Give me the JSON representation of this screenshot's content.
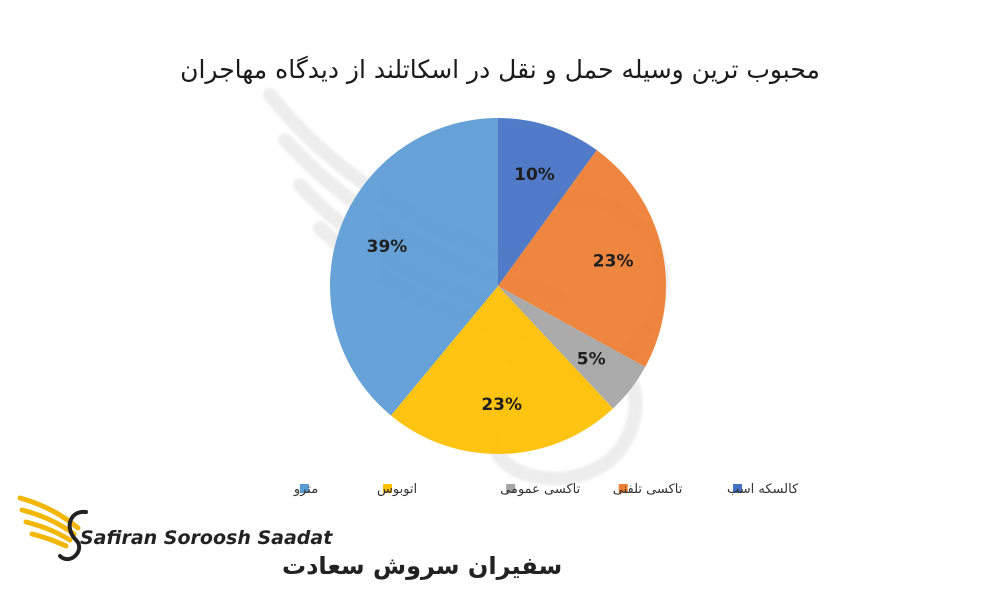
{
  "chart_data": {
    "type": "pie",
    "title": "محبوب ترین وسیله حمل و نقل در اسکاتلند از دیدگاه مهاجران",
    "slices": [
      {
        "name": "کالسکه اسب",
        "value": 10,
        "label": "10%",
        "color": "#4472C4"
      },
      {
        "name": "تاکسی تلفنی",
        "value": 23,
        "label": "23%",
        "color": "#ED7D31"
      },
      {
        "name": "تاکسی عمومی",
        "value": 5,
        "label": "5%",
        "color": "#A5A5A5"
      },
      {
        "name": "اتوبوس",
        "value": 23,
        "label": "23%",
        "color": "#FFC000"
      },
      {
        "name": "مترو",
        "value": 39,
        "label": "39%",
        "color": "#5B9BD5"
      }
    ],
    "legend_position": "bottom"
  },
  "logo": {
    "latin_text": "Safiran Soroosh Saadat",
    "farsi_text": "سفیران سروش سعادت",
    "color": "#F2B705"
  }
}
